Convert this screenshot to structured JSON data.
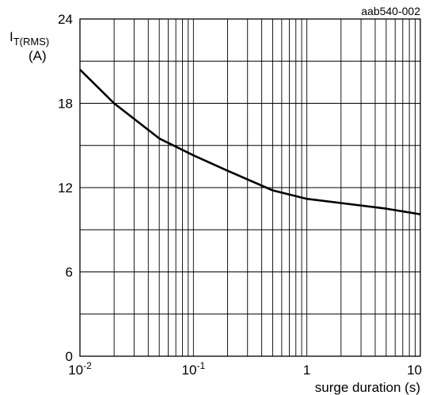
{
  "chart_data": {
    "type": "line",
    "title": "",
    "reference_code": "aab540-002",
    "ylabel": {
      "main": "I",
      "subscript": "T(RMS)",
      "unit": "(A)"
    },
    "xlabel": "surge duration  (s)",
    "x_scale": "log",
    "xlim": [
      0.01,
      10
    ],
    "ylim": [
      0,
      24
    ],
    "grid": true,
    "x_ticks": [
      {
        "value": 0.01,
        "base": "10",
        "exponent": "-2"
      },
      {
        "value": 0.1,
        "base": "10",
        "exponent": "-1"
      },
      {
        "value": 1,
        "base": "1",
        "exponent": ""
      },
      {
        "value": 10,
        "base": "10",
        "exponent": ""
      }
    ],
    "y_ticks": [
      {
        "value": 0,
        "label": "0"
      },
      {
        "value": 6,
        "label": "6"
      },
      {
        "value": 12,
        "label": "12"
      },
      {
        "value": 18,
        "label": "18"
      },
      {
        "value": 24,
        "label": "24"
      }
    ],
    "y_gridlines": [
      0,
      3,
      6,
      9,
      12,
      15,
      18,
      21,
      24
    ],
    "series": [
      {
        "x": [
          0.01,
          0.02,
          0.05,
          0.1,
          0.2,
          0.5,
          1,
          2,
          5,
          10
        ],
        "y": [
          20.4,
          18.0,
          15.5,
          14.3,
          13.2,
          11.8,
          11.2,
          10.9,
          10.5,
          10.1
        ]
      }
    ]
  }
}
